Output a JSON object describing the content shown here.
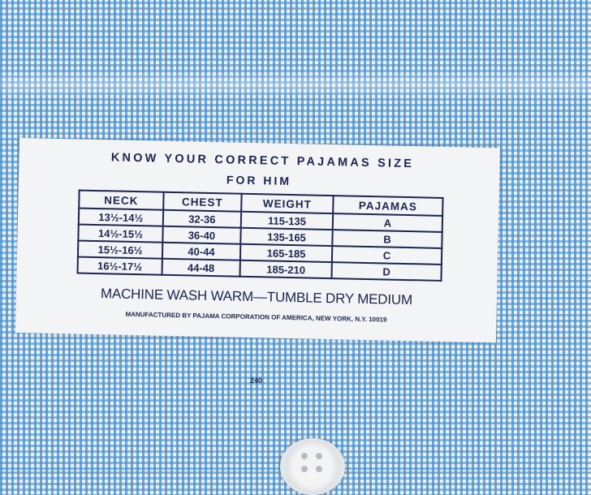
{
  "label": {
    "title": "KNOW YOUR CORRECT PAJAMAS SIZE",
    "subtitle": "FOR HIM",
    "table": {
      "headers": [
        "NECK",
        "CHEST",
        "WEIGHT",
        "PAJAMAS"
      ],
      "rows": [
        [
          "13½-14½",
          "32-36",
          "115-135",
          "A"
        ],
        [
          "14½-15½",
          "36-40",
          "135-165",
          "B"
        ],
        [
          "15½-16½",
          "40-44",
          "165-185",
          "C"
        ],
        [
          "16½-17½",
          "44-48",
          "185-210",
          "D"
        ]
      ]
    },
    "care": "MACHINE WASH WARM—TUMBLE DRY MEDIUM",
    "manufacturer": "MANUFACTURED BY PAJAMA CORPORATION OF AMERICA, NEW YORK, N.Y. 10019"
  },
  "fabric_number": "240",
  "colors": {
    "fabric": "#5a9ad0",
    "ink": "#1c2550",
    "label": "#f3f4f6"
  }
}
